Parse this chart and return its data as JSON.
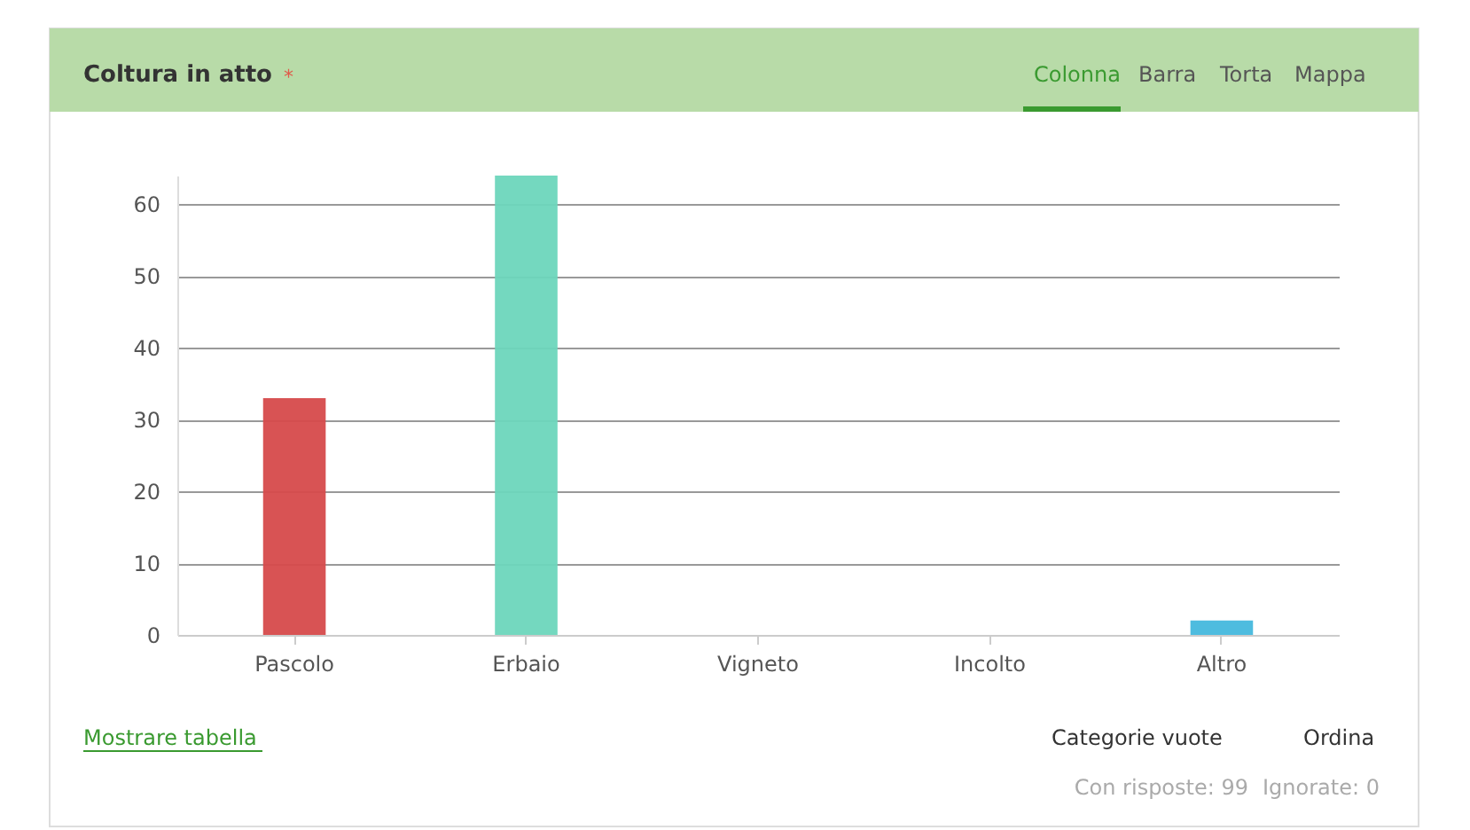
{
  "chart_data": {
    "type": "bar",
    "title": "Coltura in atto",
    "categories": [
      "Pascolo",
      "Erbaio",
      "Vigneto",
      "Incolto",
      "Altro"
    ],
    "values": [
      33,
      64,
      0,
      0,
      2
    ],
    "colors": [
      "#d64a4b",
      "#6dd6bc",
      null,
      null,
      "#44b8dd"
    ],
    "ylim": [
      0,
      64
    ],
    "yticks": [
      0,
      10,
      20,
      30,
      40,
      50,
      60
    ],
    "grid": "y",
    "annotations": [
      "*",
      "Colonna",
      "Barra",
      "Torta",
      "Mappa",
      "Mostrare tabella",
      "Categorie vuote",
      "Ordina",
      "Con risposte: 99",
      "Ignorate: 0"
    ]
  }
}
